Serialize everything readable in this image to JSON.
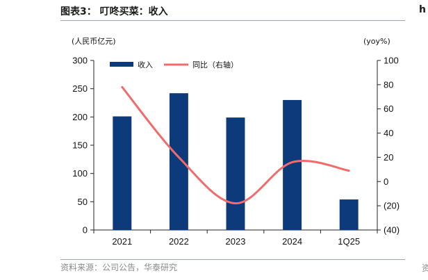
{
  "header": {
    "title": "图表3：  叮咚买菜：收入",
    "edge_fragment": "h"
  },
  "footer": {
    "source": "资料来源：公司公告，华泰研究",
    "edge_fragment": "资"
  },
  "chart_data": {
    "type": "bar",
    "title": "叮咚买菜：收入",
    "categories": [
      "2021",
      "2022",
      "2023",
      "2024",
      "1Q25"
    ],
    "series": [
      {
        "name": "收入",
        "type": "bar",
        "axis": "left",
        "color": "#0d3a7a",
        "values": [
          201,
          242,
          199,
          230,
          54
        ]
      },
      {
        "name": "同比（右轴）",
        "type": "line",
        "axis": "right",
        "color": "#f26b6b",
        "smooth": true,
        "values": [
          78,
          20,
          -18,
          16,
          9
        ]
      }
    ],
    "ylabel_left": "(人民币亿元)",
    "ylabel_right": "(yoy%)",
    "ylim_left": [
      0,
      300
    ],
    "ylim_right": [
      -40,
      100
    ],
    "yticks_left": [
      "0",
      "50",
      "100",
      "150",
      "200",
      "250",
      "300"
    ],
    "yticks_right": [
      "(40)",
      "(20)",
      "0",
      "20",
      "40",
      "60",
      "80",
      "100"
    ],
    "legend_position": "top-left",
    "grid": false
  }
}
